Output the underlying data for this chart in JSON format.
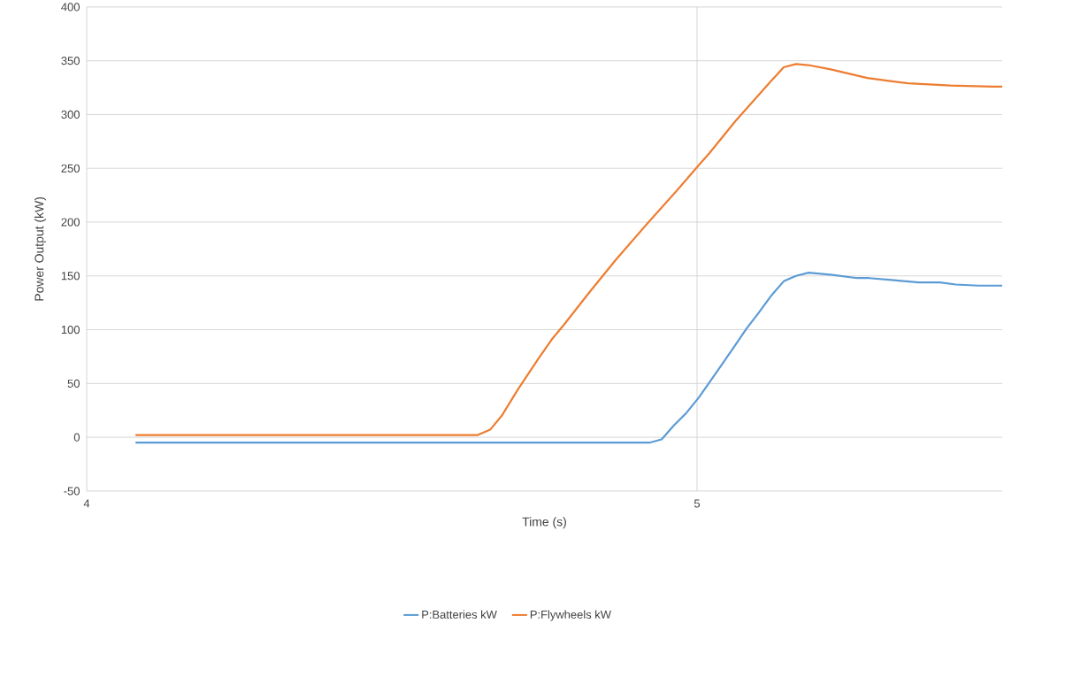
{
  "chart_data": {
    "type": "line",
    "xlabel": "Time (s)",
    "ylabel": "Power Output (kW)",
    "xlim": [
      4,
      5.5
    ],
    "xticks": [
      4,
      5
    ],
    "ylim": [
      -50,
      400
    ],
    "yticks": [
      -50,
      0,
      50,
      100,
      150,
      200,
      250,
      300,
      350,
      400
    ],
    "grid": true,
    "legend": "bottom",
    "marker": "none",
    "line_style": "solid",
    "series": [
      {
        "name": "P:Batteries kW",
        "color": "#5b9bd5",
        "x": [
          4.08,
          4.3,
          4.5,
          4.7,
          4.922,
          4.942,
          4.962,
          4.983,
          5.003,
          5.04,
          5.063,
          5.081,
          5.1,
          5.122,
          5.142,
          5.162,
          5.183,
          5.222,
          5.262,
          5.282,
          5.323,
          5.363,
          5.398,
          5.424,
          5.461,
          5.5
        ],
        "values": [
          -5,
          -5,
          -5,
          -5,
          -5,
          -2,
          11,
          23,
          37,
          67,
          86,
          101,
          115,
          132,
          145,
          150,
          153,
          151,
          148,
          148,
          146,
          144,
          144,
          142,
          141,
          141
        ]
      },
      {
        "name": "P:Flywheels kW",
        "color": "#ed7d31",
        "x": [
          4.08,
          4.3,
          4.5,
          4.64,
          4.661,
          4.68,
          4.706,
          4.74,
          4.762,
          4.781,
          4.824,
          4.867,
          4.919,
          4.968,
          5.003,
          5.02,
          5.063,
          5.121,
          5.142,
          5.162,
          5.182,
          5.219,
          5.279,
          5.346,
          5.415,
          5.484,
          5.5
        ],
        "values": [
          2,
          2,
          2,
          2,
          7,
          20,
          44,
          73,
          91,
          104,
          135,
          165,
          199,
          230,
          253,
          264,
          294,
          331,
          344,
          347,
          346,
          342,
          334,
          329,
          327,
          326,
          326
        ]
      }
    ]
  }
}
